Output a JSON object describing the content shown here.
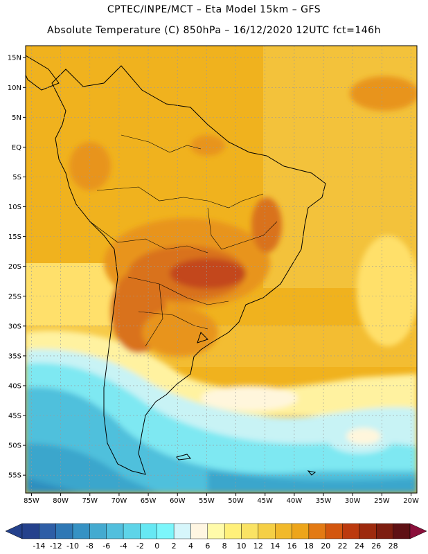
{
  "header": {
    "line1": "CPTEC/INPE/MCT –  Eta Model 15km – GFS",
    "line2": "Absolute Temperature (C) 850hPa – 16/12/2020 12UTC fct=146h"
  },
  "map": {
    "lon_range": [
      -86,
      -19
    ],
    "lat_range": [
      -58,
      17
    ],
    "lat_ticks": [
      {
        "value": 15,
        "label": "15N"
      },
      {
        "value": 10,
        "label": "10N"
      },
      {
        "value": 5,
        "label": "5N"
      },
      {
        "value": 0,
        "label": "EQ"
      },
      {
        "value": -5,
        "label": "5S"
      },
      {
        "value": -10,
        "label": "10S"
      },
      {
        "value": -15,
        "label": "15S"
      },
      {
        "value": -20,
        "label": "20S"
      },
      {
        "value": -25,
        "label": "25S"
      },
      {
        "value": -30,
        "label": "30S"
      },
      {
        "value": -35,
        "label": "35S"
      },
      {
        "value": -40,
        "label": "40S"
      },
      {
        "value": -45,
        "label": "45S"
      },
      {
        "value": -50,
        "label": "50S"
      },
      {
        "value": -55,
        "label": "55S"
      }
    ],
    "lon_ticks": [
      {
        "value": -85,
        "label": "85W"
      },
      {
        "value": -80,
        "label": "80W"
      },
      {
        "value": -75,
        "label": "75W"
      },
      {
        "value": -70,
        "label": "70W"
      },
      {
        "value": -65,
        "label": "65W"
      },
      {
        "value": -60,
        "label": "60W"
      },
      {
        "value": -55,
        "label": "55W"
      },
      {
        "value": -50,
        "label": "50W"
      },
      {
        "value": -45,
        "label": "45W"
      },
      {
        "value": -40,
        "label": "40W"
      },
      {
        "value": -35,
        "label": "35W"
      },
      {
        "value": -30,
        "label": "30W"
      },
      {
        "value": -25,
        "label": "25W"
      },
      {
        "value": -20,
        "label": "20W"
      }
    ],
    "grid": true,
    "colors": {
      "t10": "#2f8fbf",
      "t8": "#3aa6cc",
      "t6": "#4fc0dc",
      "t4": "#63d9ea",
      "t2": "#7ee8f2",
      "t0": "#c8f3f5",
      "t6w": "#fff6dc",
      "t10w": "#fff2a0",
      "t12": "#ffe06b",
      "t14": "#f8d54a",
      "t16": "#f3c23b",
      "t18": "#f0b21e",
      "t20": "#e8941e",
      "t22": "#d9721c",
      "t24": "#c3471c",
      "t26": "#a8301c"
    }
  },
  "colorbar": {
    "labels": [
      "-14",
      "-12",
      "-10",
      "-8",
      "-6",
      "-4",
      "-2",
      "0",
      "2",
      "4",
      "6",
      "8",
      "10",
      "12",
      "14",
      "16",
      "18",
      "20",
      "22",
      "24",
      "26",
      "28"
    ],
    "colors": [
      "#24418c",
      "#2e5ea6",
      "#2f78b5",
      "#3692c4",
      "#44aad0",
      "#52bfdd",
      "#5ed4e8",
      "#66e8f3",
      "#7cf6fb",
      "#d6f6fb",
      "#fff6e2",
      "#fffbaa",
      "#fff07a",
      "#fae364",
      "#f5cf45",
      "#f1b92b",
      "#eda51a",
      "#e37a14",
      "#d3560f",
      "#bc3a0e",
      "#9d2a0e",
      "#7d1d10",
      "#5e1014"
    ],
    "left_arrow_color": "#24418c",
    "right_arrow_color": "#8a0f3a"
  }
}
